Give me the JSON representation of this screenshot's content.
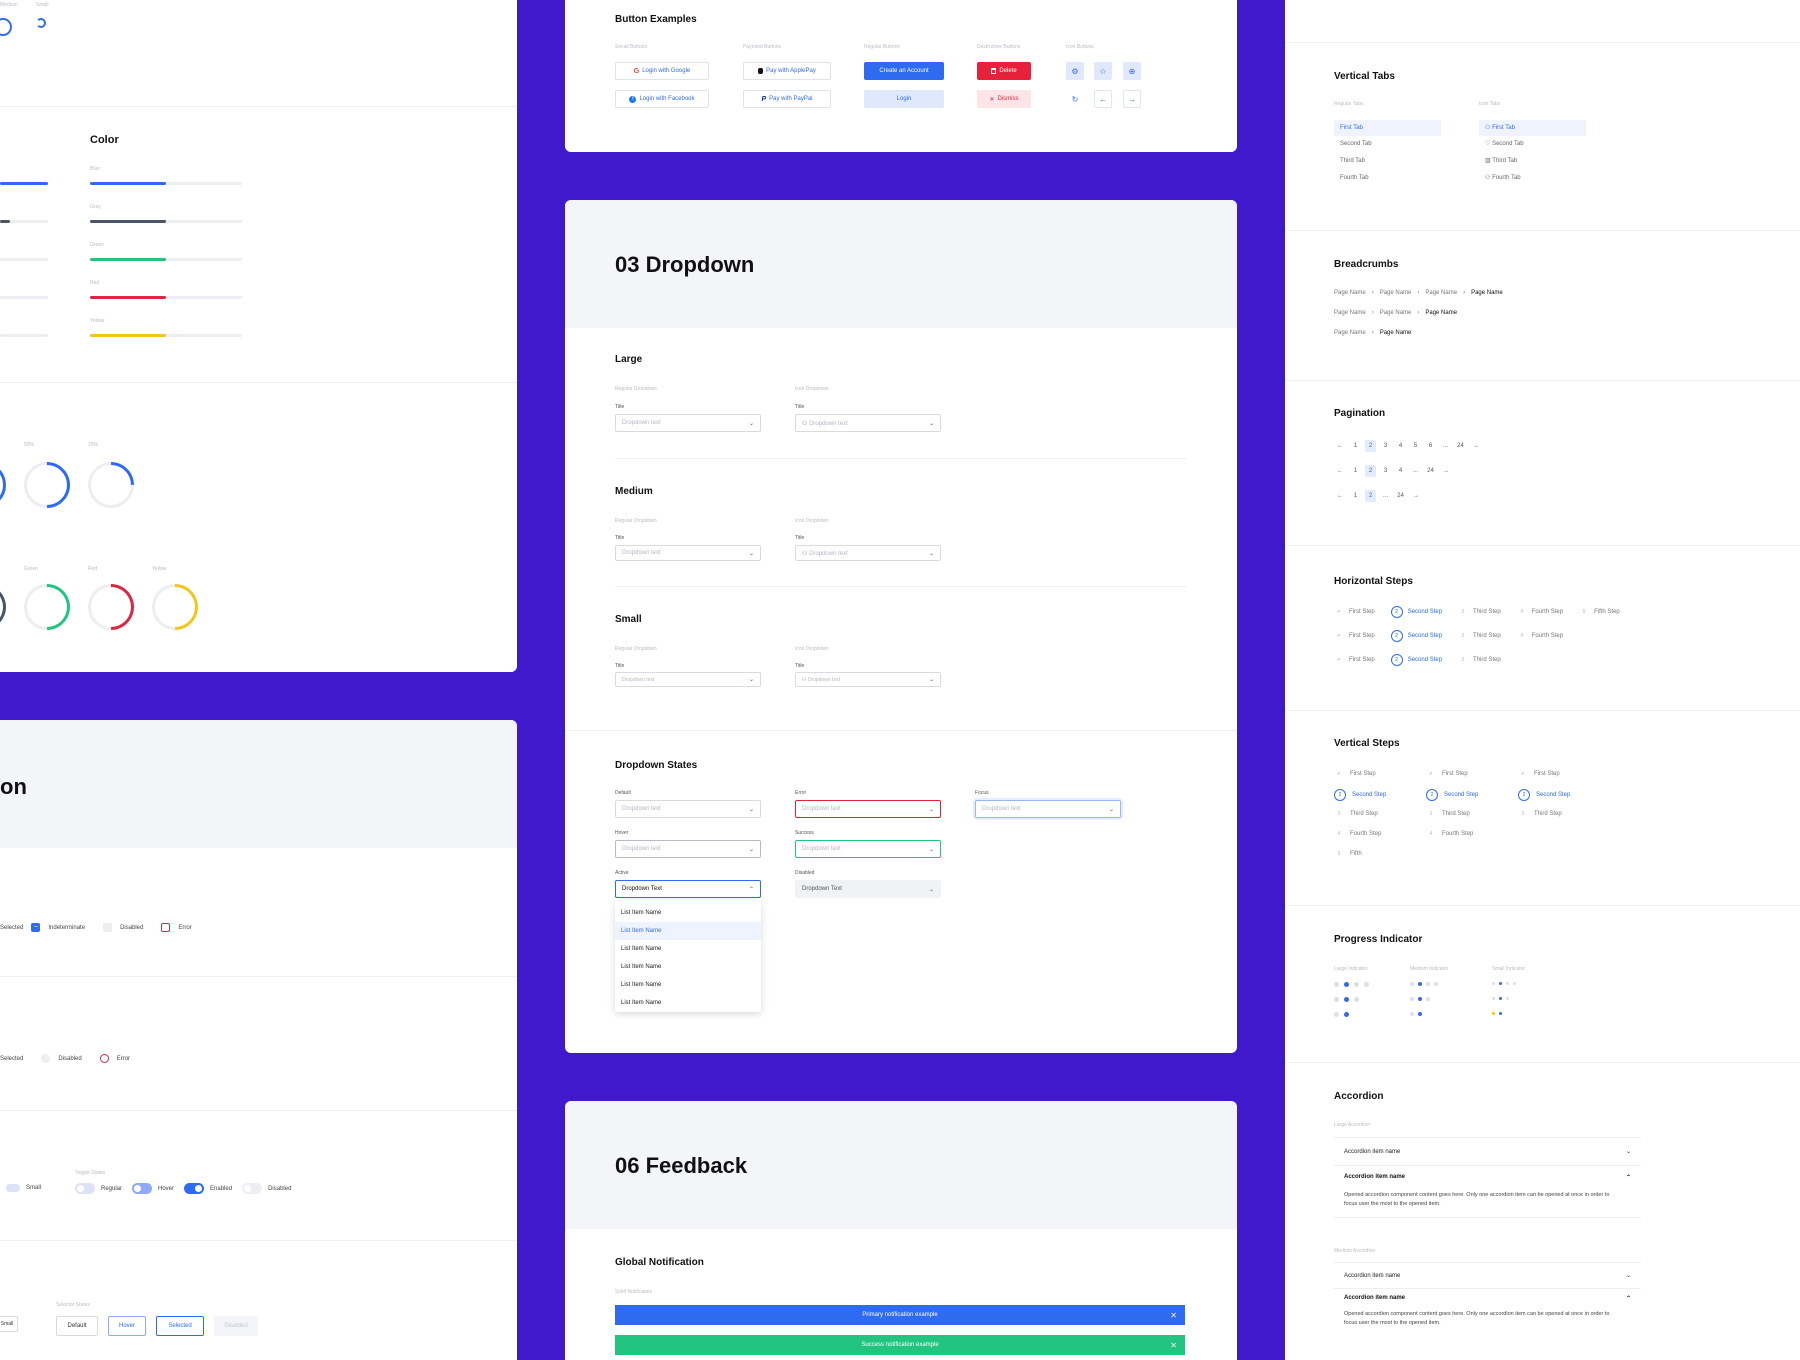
{
  "left_top": {
    "size_labels": [
      "Medium",
      "Small"
    ],
    "color_title": "Color",
    "color_bars": [
      {
        "label": "Blue",
        "color": "#2f6bf0",
        "fill": 0.5
      },
      {
        "label": "Gray",
        "color": "#4b5563",
        "fill": 0.5
      },
      {
        "label": "Green",
        "color": "#22c57f",
        "fill": 0.5
      },
      {
        "label": "Red",
        "color": "#dc2644",
        "fill": 0.5
      },
      {
        "label": "Yellow",
        "color": "#f5c518",
        "fill": 0.5
      }
    ],
    "rings_row1": [
      {
        "label": "50%",
        "value": 0.5
      },
      {
        "label": "25%",
        "value": 0.25
      }
    ],
    "rings_row2": [
      {
        "label": "Green",
        "color": "#22c57f"
      },
      {
        "label": "Red",
        "color": "#dc2644"
      },
      {
        "label": "Yellow",
        "color": "#f5c518"
      }
    ]
  },
  "left_bottom": {
    "title_fragment": "on",
    "checkbox_row": {
      "selected": "Selected",
      "indeterminate": "Indeterminate",
      "disabled": "Disabled",
      "error": "Error"
    },
    "radio_row": {
      "selected": "Selected",
      "disabled": "Disabled",
      "error": "Error"
    },
    "toggle": {
      "small": "Small",
      "states_caption": "Toggle States",
      "regular": "Regular",
      "hover": "Hover",
      "enabled": "Enabled",
      "disabled": "Disabled"
    },
    "selector": {
      "small": "Small",
      "states_caption": "Selector States",
      "default": "Default",
      "hover": "Hover",
      "selected": "Selected",
      "disabled": "Disabled"
    }
  },
  "buttons": {
    "title": "Button Examples",
    "social_caption": "Social Buttons",
    "google": "Login with Google",
    "facebook": "Login with Facebook",
    "payment_caption": "Payment Buttons",
    "applepay": "Pay with ApplePay",
    "paypal": "Pay with PayPal",
    "regular_caption": "Regular Buttons",
    "create": "Create an Account",
    "login": "Login",
    "destructive_caption": "Destructive Buttons",
    "delete": "Delete",
    "dismiss": "Dismiss",
    "icon_caption": "Icon Buttons"
  },
  "dropdown": {
    "title": "03 Dropdown",
    "large": "Large",
    "medium": "Medium",
    "small": "Small",
    "regular_caption": "Regular Dropdown",
    "icon_caption": "Icon Dropdown",
    "field_title": "Title",
    "placeholder": "Dropdown text",
    "states_title": "Dropdown States",
    "state_default": "Default",
    "state_error": "Error",
    "state_focus": "Focus",
    "state_hover": "Hover",
    "state_success": "Success",
    "state_active": "Active",
    "state_disabled": "Disabled",
    "active_value": "Dropdown Text",
    "disabled_value": "Dropdown Text",
    "list_items": [
      "List Item Name",
      "List Item Name",
      "List Item Name",
      "List Item Name",
      "List Item Name",
      "List Item Name"
    ]
  },
  "feedback": {
    "title": "06 Feedback",
    "global_title": "Global Notification",
    "solid_caption": "Solid Notification",
    "primary": "Primary notification example",
    "success": "Success notification example"
  },
  "right": {
    "vtabs_title": "Vertical Tabs",
    "regular_tabs_caption": "Regular Tabs",
    "icon_tabs_caption": "Icon Tabs",
    "tabs": [
      "First Tab",
      "Second Tab",
      "Third Tab",
      "Fourth Tab"
    ],
    "breadcrumbs_title": "Breadcrumbs",
    "crumb": "Page Name",
    "pagination_title": "Pagination",
    "page_rows": [
      [
        "1",
        "2",
        "3",
        "4",
        "5",
        "6",
        "...",
        "24"
      ],
      [
        "1",
        "2",
        "3",
        "4",
        "...",
        "24"
      ],
      [
        "1",
        "2",
        "...",
        "24"
      ]
    ],
    "hsteps_title": "Horizontal Steps",
    "steps": [
      "First Step",
      "Second Step",
      "Third Step",
      "Fourth Step",
      "Fifth Step"
    ],
    "vsteps_title": "Vertical Steps",
    "vstep_fifth": "Fifth",
    "progress_title": "Progress Indicator",
    "large_indicator": "Large Indicator",
    "medium_indicator": "Medium Indicator",
    "small_indicator": "Small Indicator",
    "accordion_title": "Accordion",
    "large_accordion": "Large Accordion",
    "medium_accordion": "Medium Accordion",
    "acc_item": "Accordion item name",
    "acc_body": "Opened accordion component content goes here. Only one accordion item can be opened at once in order to focus user the most to the opened item."
  },
  "colors": {
    "bg": "#4119cc",
    "primary": "#2f6bf0",
    "success": "#22c57f",
    "danger": "#e8213a"
  }
}
